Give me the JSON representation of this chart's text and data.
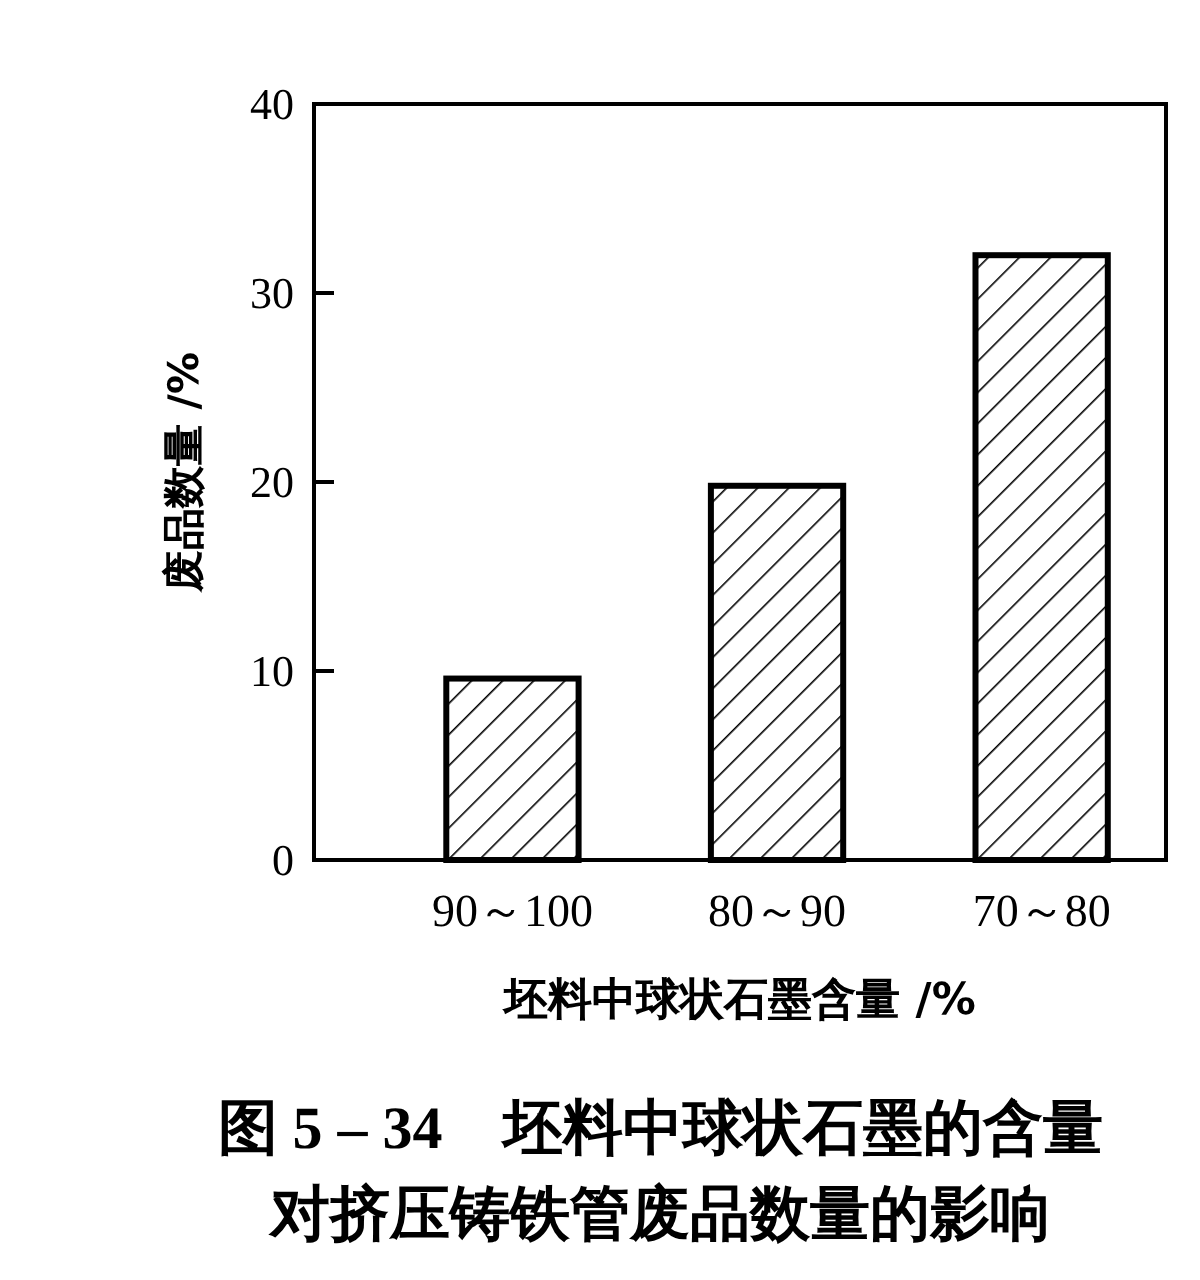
{
  "chart_data": {
    "type": "bar",
    "title": "图 5 – 34　坯料中球状石墨的含量对挤压铸铁管废品数量的影响",
    "xlabel": "坯料中球状石墨含量 /%",
    "ylabel": "废品数量 /%",
    "categories": [
      "90～100",
      "80～90",
      "70～80"
    ],
    "values": [
      9.6,
      19.8,
      32.0
    ],
    "color": "#000000",
    "ylim": [
      0,
      40
    ],
    "yticks": [
      0,
      10,
      20,
      30,
      40
    ]
  }
}
